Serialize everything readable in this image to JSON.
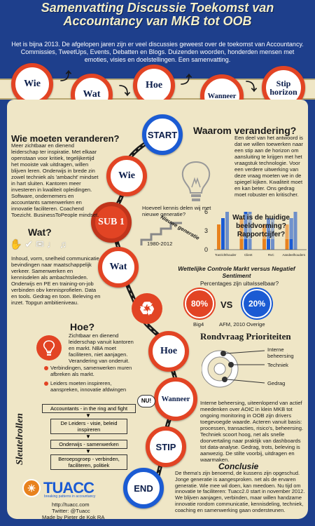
{
  "header": {
    "title": "Samenvatting Discussie Toekomst van Accountancy van MKB tot OOB",
    "intro": "Het is bijna 2013. De afgelopen jaren zijn er veel discussies geweest over de toekomst van Accountancy. Commissies, TweetUps, Events, Debatten en Blogs. Duizenden woorden, honderden mensen met emoties, visies en doelstellingen. Een samenvatting."
  },
  "top_circles": [
    "Wie",
    "Wat",
    "Hoe",
    "Wanneer",
    "Stip horizon"
  ],
  "route": [
    "START",
    "Wie",
    "SUB 1",
    "Wat",
    "Hoe",
    "Wanneer",
    "STIP",
    "END"
  ],
  "wie": {
    "heading": "Wie moeten veranderen?",
    "text": "Meer zichtbaar en dienend leiderschap ter inspiratie. Met elkaar openstaan voor kritiek, tegelijkertijd het mooiste vak uitdragen, willen blijven leren. Onderwijs in brede zin zowel techniek als 'ambacht' mindset in hart sluiten. Kantoren meer investeren in kwaliteit opleidingen. Software, ondernemers en accountants samenwerken en innovatie faciliteren. Coachend Toezicht. BusinessToPeople mindset."
  },
  "waarom": {
    "heading": "Waarom verandering?",
    "text": "Een deel van het antwoord is dat we willen toewerken naar een stip aan de horizon om aansluiting te krijgen met het vraagstuk technologie. Voor een verdere uitwerking van deze vraag moeten we in de spiegel kijken. Kwaliteit moet en kan beter. Ons gedrag moet robuster en kritischer."
  },
  "wat": {
    "heading": "Wat?",
    "text": "Inhoud, vorm, snelheid communicatie bevindingen naar maatschappelijk verkeer. Samenwerken en kennisdelen als ambachtslieden. Onderwijs en PE en training-on-job verbinden obv kennisprofielen. Data en tools. Gedrag en toon. Beleving en inzet. Topgun ambitieniveau."
  },
  "kennis": {
    "question": "Hoeveel kennis delen wij met nieuwe generatie?",
    "years": "1980-2012",
    "label": "Nieuwe generatie"
  },
  "beeld": {
    "question": "Wat is de huidige beeldvorming? Rapportcijfer?",
    "chart_data": {
      "type": "bar",
      "categories": [
        "Toezichthouder",
        "Client",
        "RvC",
        "Aandeelhouders"
      ],
      "series": [
        {
          "values": [
            4,
            5,
            4,
            4
          ]
        },
        {
          "values": [
            5,
            6,
            5,
            5
          ]
        },
        {
          "values": [
            6,
            6,
            5,
            6
          ]
        }
      ],
      "yticks": [
        "0",
        "3",
        "6"
      ],
      "ylim": [
        0,
        6
      ]
    }
  },
  "wettelijke": {
    "heading": "Wettelijke Controle Markt versus Negatief Sentiment",
    "subheading": "Percentages zijn uitwisselbaar?",
    "left_value": "80%",
    "left_label": "Big4",
    "right_value": "20%",
    "right_label": "Overige",
    "vs": "VS",
    "source": "AFM, 2010"
  },
  "hoe": {
    "heading": "Hoe?",
    "text": "Zichtbaar en dienend leiderschap vanuit kantoren en markt. NBA moet faciliteren, niet aanjagen. Verandering van onderuit.",
    "bullets": [
      "Verbindingen, samenwerken muren afbreken als markt.",
      "Leiders moeten inspireren, aanspreken, innovatie afdwingen"
    ]
  },
  "rondvraag": {
    "heading": "Rondvraag Prioriteiten",
    "items": [
      "Interne beheersing",
      "Techniek",
      "Gedrag"
    ],
    "text": "Interne beheersing, uiteenlopend van actief meedenken over AOIC in klein MKB tot ongoing monitoring in OOB zijn drivers toegevoegde waarde. Acteren vanuit basis: processen, transacties, risico's, beheersing. Techniek scoort hoog, net als snelle doorvertaling naar praktijk van dashboards tot data-analyse. Gedrag, trots, beleving is aanwezig. De stilte voorbij, uitdragen en waarmaken."
  },
  "sleutel": {
    "heading": "Sleutelrollen",
    "nu": "NU!",
    "flow": [
      "Accountants - in the ring and fight",
      "De Leiders - visie, beleid inspireren",
      "Onderwijs - samenwerken",
      "Beroepsgroep - verbinden, faciliteren, politiek"
    ]
  },
  "conclusie": {
    "heading": "Conclusie",
    "text": "De thema's zijn benoemd, de kussens zijn opgeschud. Jonge generatie is aangesproken. net als de ervaren generatie. Wie mee wil doen, kan meedoen. Nu tijd om innovatie te faciliteren: Tuacc2.0 start in november 2012. We blijven aanjagen, verbinden, maar willen handzame innovatie rondom communicatie, kennisdeling, techniek, coaching en samenwerking gaan ondersteunen."
  },
  "footer": {
    "logo": "TUACC",
    "tagline": "breaking patterns in accountancy",
    "url": "http://tuacc.com",
    "twitter": "Twitter: @Tuacc",
    "made_by": "Made by Pieter de Kok RA"
  },
  "colors": {
    "accent": "#e24424",
    "navy": "#1e3f8c",
    "paper": "#efe6c6",
    "blue": "#1b5bd3"
  }
}
